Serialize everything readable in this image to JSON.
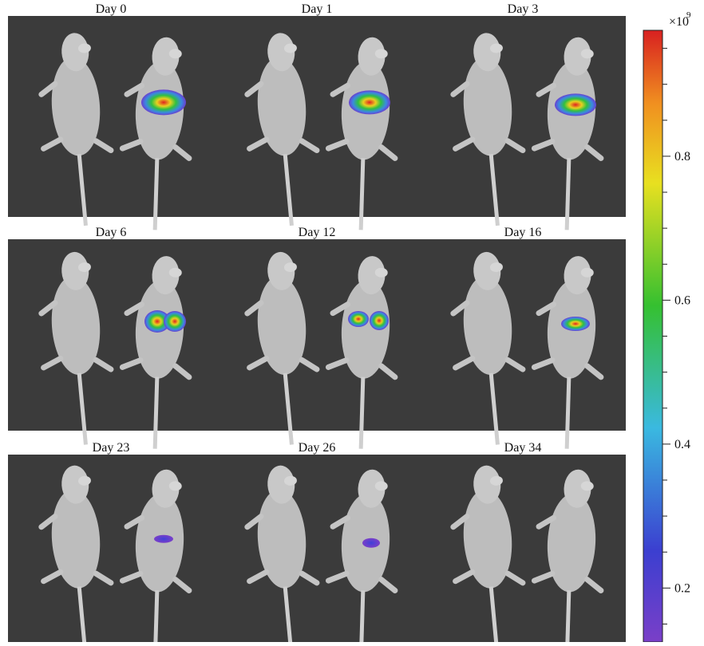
{
  "panels": [
    {
      "label": "Day 0"
    },
    {
      "label": "Day 1"
    },
    {
      "label": "Day 3"
    },
    {
      "label": "Day 6"
    },
    {
      "label": "Day 12"
    },
    {
      "label": "Day 16"
    },
    {
      "label": "Day 23"
    },
    {
      "label": "Day 26"
    },
    {
      "label": "Day 34"
    }
  ],
  "colorbar": {
    "multiplier": "×10",
    "exponent": "9",
    "lim": [
      0.125,
      0.975
    ],
    "ticks": [
      0.2,
      0.4,
      0.6,
      0.8
    ],
    "minor_ticks": [
      0.15,
      0.25,
      0.3,
      0.35,
      0.45,
      0.5,
      0.55,
      0.65,
      0.7,
      0.75,
      0.85,
      0.9,
      0.95
    ]
  }
}
